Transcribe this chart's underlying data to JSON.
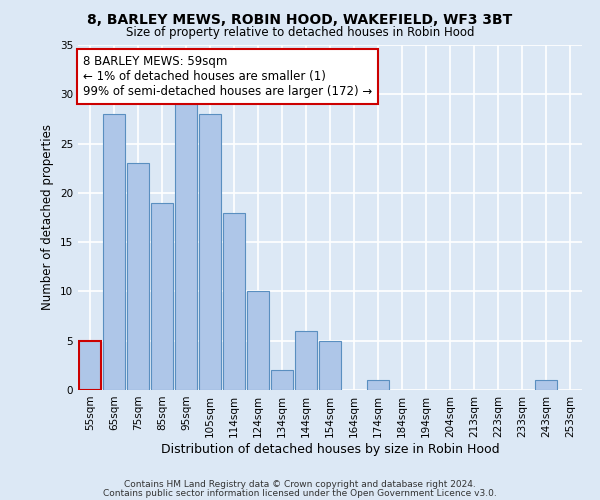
{
  "title": "8, BARLEY MEWS, ROBIN HOOD, WAKEFIELD, WF3 3BT",
  "subtitle": "Size of property relative to detached houses in Robin Hood",
  "xlabel": "Distribution of detached houses by size in Robin Hood",
  "ylabel": "Number of detached properties",
  "bin_labels": [
    "55sqm",
    "65sqm",
    "75sqm",
    "85sqm",
    "95sqm",
    "105sqm",
    "114sqm",
    "124sqm",
    "134sqm",
    "144sqm",
    "154sqm",
    "164sqm",
    "174sqm",
    "184sqm",
    "194sqm",
    "204sqm",
    "213sqm",
    "223sqm",
    "233sqm",
    "243sqm",
    "253sqm"
  ],
  "bar_values": [
    5,
    28,
    23,
    19,
    29,
    28,
    18,
    10,
    2,
    6,
    5,
    0,
    1,
    0,
    0,
    0,
    0,
    0,
    0,
    1,
    0
  ],
  "bar_color": "#aec6e8",
  "bar_edge_color": "#5a8fc0",
  "highlight_bar_index": 0,
  "highlight_bar_edge_color": "#cc0000",
  "annotation_text": "8 BARLEY MEWS: 59sqm\n← 1% of detached houses are smaller (1)\n99% of semi-detached houses are larger (172) →",
  "annotation_box_color": "#ffffff",
  "annotation_box_edge_color": "#cc0000",
  "ylim": [
    0,
    35
  ],
  "yticks": [
    0,
    5,
    10,
    15,
    20,
    25,
    30,
    35
  ],
  "footer_line1": "Contains HM Land Registry data © Crown copyright and database right 2024.",
  "footer_line2": "Contains public sector information licensed under the Open Government Licence v3.0.",
  "background_color": "#dce8f5",
  "grid_color": "#ffffff"
}
